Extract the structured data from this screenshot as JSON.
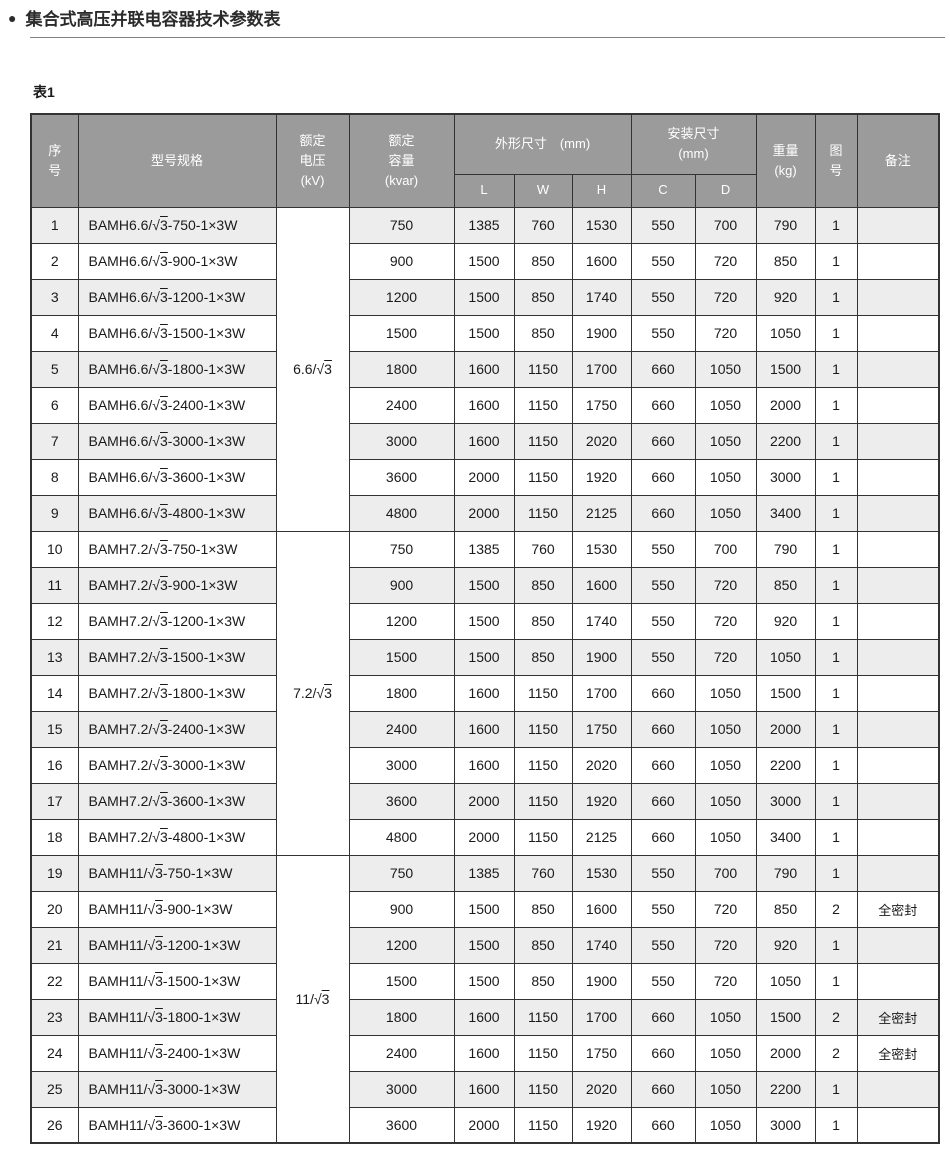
{
  "page": {
    "bullet": "●",
    "title": "集合式高压并联电容器技术参数表",
    "table_label": "表1"
  },
  "colors": {
    "header_bg": "#9b9b9b",
    "header_text": "#ffffff",
    "row_stripe": "#ededed",
    "border": "#333333",
    "text": "#1a1a1a"
  },
  "table": {
    "headers": {
      "index": "序\n号",
      "model": "型号规格",
      "voltage": "额定\n电压\n(kV)",
      "capacity": "额定\n容量\n(kvar)",
      "dims_group": "外形尺寸　(mm)",
      "install_group": "安装尺寸\n(mm)",
      "dim_l": "L",
      "dim_w": "W",
      "dim_h": "H",
      "dim_c": "C",
      "dim_d": "D",
      "weight": "重量\n(kg)",
      "figure": "图\n号",
      "remark": "备注"
    },
    "voltage_groups": [
      {
        "label": "6.6/√3",
        "span": 9
      },
      {
        "label": "7.2/√3",
        "span": 9
      },
      {
        "label": "11/√3",
        "span": 8
      }
    ],
    "rows": [
      {
        "no": "1",
        "model": "BAMH6.6/√3-750-1×3W",
        "kvar": "750",
        "L": "1385",
        "W": "760",
        "H": "1530",
        "C": "550",
        "D": "700",
        "kg": "790",
        "fig": "1",
        "note": ""
      },
      {
        "no": "2",
        "model": "BAMH6.6/√3-900-1×3W",
        "kvar": "900",
        "L": "1500",
        "W": "850",
        "H": "1600",
        "C": "550",
        "D": "720",
        "kg": "850",
        "fig": "1",
        "note": ""
      },
      {
        "no": "3",
        "model": "BAMH6.6/√3-1200-1×3W",
        "kvar": "1200",
        "L": "1500",
        "W": "850",
        "H": "1740",
        "C": "550",
        "D": "720",
        "kg": "920",
        "fig": "1",
        "note": ""
      },
      {
        "no": "4",
        "model": "BAMH6.6/√3-1500-1×3W",
        "kvar": "1500",
        "L": "1500",
        "W": "850",
        "H": "1900",
        "C": "550",
        "D": "720",
        "kg": "1050",
        "fig": "1",
        "note": ""
      },
      {
        "no": "5",
        "model": "BAMH6.6/√3-1800-1×3W",
        "kvar": "1800",
        "L": "1600",
        "W": "1150",
        "H": "1700",
        "C": "660",
        "D": "1050",
        "kg": "1500",
        "fig": "1",
        "note": ""
      },
      {
        "no": "6",
        "model": "BAMH6.6/√3-2400-1×3W",
        "kvar": "2400",
        "L": "1600",
        "W": "1150",
        "H": "1750",
        "C": "660",
        "D": "1050",
        "kg": "2000",
        "fig": "1",
        "note": ""
      },
      {
        "no": "7",
        "model": "BAMH6.6/√3-3000-1×3W",
        "kvar": "3000",
        "L": "1600",
        "W": "1150",
        "H": "2020",
        "C": "660",
        "D": "1050",
        "kg": "2200",
        "fig": "1",
        "note": ""
      },
      {
        "no": "8",
        "model": "BAMH6.6/√3-3600-1×3W",
        "kvar": "3600",
        "L": "2000",
        "W": "1150",
        "H": "1920",
        "C": "660",
        "D": "1050",
        "kg": "3000",
        "fig": "1",
        "note": ""
      },
      {
        "no": "9",
        "model": "BAMH6.6/√3-4800-1×3W",
        "kvar": "4800",
        "L": "2000",
        "W": "1150",
        "H": "2125",
        "C": "660",
        "D": "1050",
        "kg": "3400",
        "fig": "1",
        "note": ""
      },
      {
        "no": "10",
        "model": "BAMH7.2/√3-750-1×3W",
        "kvar": "750",
        "L": "1385",
        "W": "760",
        "H": "1530",
        "C": "550",
        "D": "700",
        "kg": "790",
        "fig": "1",
        "note": ""
      },
      {
        "no": "11",
        "model": "BAMH7.2/√3-900-1×3W",
        "kvar": "900",
        "L": "1500",
        "W": "850",
        "H": "1600",
        "C": "550",
        "D": "720",
        "kg": "850",
        "fig": "1",
        "note": ""
      },
      {
        "no": "12",
        "model": "BAMH7.2/√3-1200-1×3W",
        "kvar": "1200",
        "L": "1500",
        "W": "850",
        "H": "1740",
        "C": "550",
        "D": "720",
        "kg": "920",
        "fig": "1",
        "note": ""
      },
      {
        "no": "13",
        "model": "BAMH7.2/√3-1500-1×3W",
        "kvar": "1500",
        "L": "1500",
        "W": "850",
        "H": "1900",
        "C": "550",
        "D": "720",
        "kg": "1050",
        "fig": "1",
        "note": ""
      },
      {
        "no": "14",
        "model": "BAMH7.2/√3-1800-1×3W",
        "kvar": "1800",
        "L": "1600",
        "W": "1150",
        "H": "1700",
        "C": "660",
        "D": "1050",
        "kg": "1500",
        "fig": "1",
        "note": ""
      },
      {
        "no": "15",
        "model": "BAMH7.2/√3-2400-1×3W",
        "kvar": "2400",
        "L": "1600",
        "W": "1150",
        "H": "1750",
        "C": "660",
        "D": "1050",
        "kg": "2000",
        "fig": "1",
        "note": ""
      },
      {
        "no": "16",
        "model": "BAMH7.2/√3-3000-1×3W",
        "kvar": "3000",
        "L": "1600",
        "W": "1150",
        "H": "2020",
        "C": "660",
        "D": "1050",
        "kg": "2200",
        "fig": "1",
        "note": ""
      },
      {
        "no": "17",
        "model": "BAMH7.2/√3-3600-1×3W",
        "kvar": "3600",
        "L": "2000",
        "W": "1150",
        "H": "1920",
        "C": "660",
        "D": "1050",
        "kg": "3000",
        "fig": "1",
        "note": ""
      },
      {
        "no": "18",
        "model": "BAMH7.2/√3-4800-1×3W",
        "kvar": "4800",
        "L": "2000",
        "W": "1150",
        "H": "2125",
        "C": "660",
        "D": "1050",
        "kg": "3400",
        "fig": "1",
        "note": ""
      },
      {
        "no": "19",
        "model": "BAMH11/√3-750-1×3W",
        "kvar": "750",
        "L": "1385",
        "W": "760",
        "H": "1530",
        "C": "550",
        "D": "700",
        "kg": "790",
        "fig": "1",
        "note": ""
      },
      {
        "no": "20",
        "model": "BAMH11/√3-900-1×3W",
        "kvar": "900",
        "L": "1500",
        "W": "850",
        "H": "1600",
        "C": "550",
        "D": "720",
        "kg": "850",
        "fig": "2",
        "note": "全密封"
      },
      {
        "no": "21",
        "model": "BAMH11/√3-1200-1×3W",
        "kvar": "1200",
        "L": "1500",
        "W": "850",
        "H": "1740",
        "C": "550",
        "D": "720",
        "kg": "920",
        "fig": "1",
        "note": ""
      },
      {
        "no": "22",
        "model": "BAMH11/√3-1500-1×3W",
        "kvar": "1500",
        "L": "1500",
        "W": "850",
        "H": "1900",
        "C": "550",
        "D": "720",
        "kg": "1050",
        "fig": "1",
        "note": ""
      },
      {
        "no": "23",
        "model": "BAMH11/√3-1800-1×3W",
        "kvar": "1800",
        "L": "1600",
        "W": "1150",
        "H": "1700",
        "C": "660",
        "D": "1050",
        "kg": "1500",
        "fig": "2",
        "note": "全密封"
      },
      {
        "no": "24",
        "model": "BAMH11/√3-2400-1×3W",
        "kvar": "2400",
        "L": "1600",
        "W": "1150",
        "H": "1750",
        "C": "660",
        "D": "1050",
        "kg": "2000",
        "fig": "2",
        "note": "全密封"
      },
      {
        "no": "25",
        "model": "BAMH11/√3-3000-1×3W",
        "kvar": "3000",
        "L": "1600",
        "W": "1150",
        "H": "2020",
        "C": "660",
        "D": "1050",
        "kg": "2200",
        "fig": "1",
        "note": ""
      },
      {
        "no": "26",
        "model": "BAMH11/√3-3600-1×3W",
        "kvar": "3600",
        "L": "2000",
        "W": "1150",
        "H": "1920",
        "C": "660",
        "D": "1050",
        "kg": "3000",
        "fig": "1",
        "note": ""
      }
    ]
  }
}
